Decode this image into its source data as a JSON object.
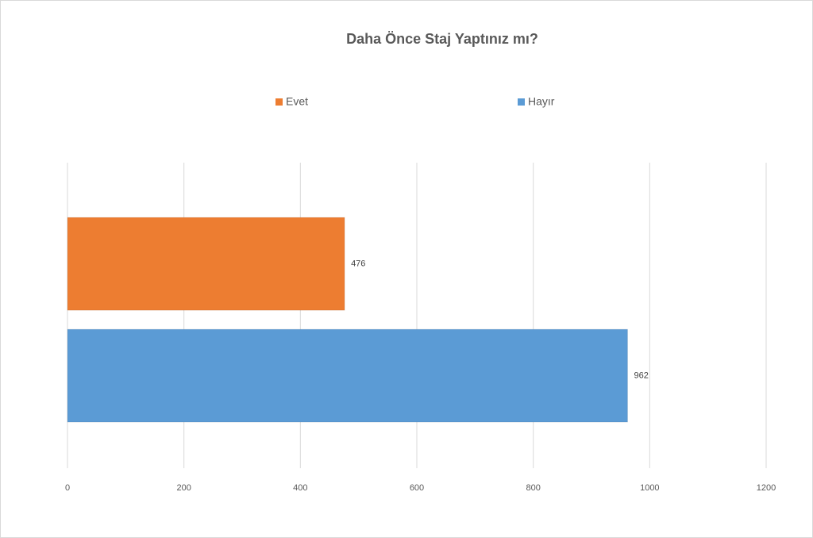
{
  "chart_data": {
    "type": "bar",
    "orientation": "horizontal",
    "title": "Daha Önce Staj Yaptınız mı?",
    "categories": [
      null
    ],
    "series": [
      {
        "name": "Evet",
        "color": "#ed7d31",
        "values": [
          476
        ]
      },
      {
        "name": "Hayır",
        "color": "#5b9bd5",
        "values": [
          962
        ]
      }
    ],
    "xlim": [
      0,
      1200
    ],
    "xticks": [
      0,
      200,
      400,
      600,
      800,
      1000,
      1200
    ],
    "grid": true,
    "legend": "top",
    "data_labels": true
  }
}
